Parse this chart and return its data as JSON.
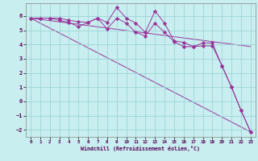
{
  "xlabel": "Windchill (Refroidissement éolien,°C)",
  "bg_color": "#c8eef0",
  "grid_color": "#9fd4d8",
  "line_color": "#993399",
  "xlim": [
    -0.5,
    23.5
  ],
  "ylim": [
    -2.5,
    6.9
  ],
  "xticks": [
    0,
    1,
    2,
    3,
    4,
    5,
    6,
    7,
    8,
    9,
    10,
    11,
    12,
    13,
    14,
    15,
    16,
    17,
    18,
    19,
    20,
    21,
    22,
    23
  ],
  "yticks": [
    -2,
    -1,
    0,
    1,
    2,
    3,
    4,
    5,
    6
  ],
  "line1_x": [
    0,
    1,
    2,
    3,
    4,
    5,
    6,
    7,
    8,
    9,
    10,
    11,
    12,
    13,
    14,
    15,
    16,
    17,
    18,
    19,
    20,
    21,
    22,
    23
  ],
  "line1_y": [
    5.85,
    5.85,
    5.85,
    5.7,
    5.55,
    5.25,
    5.55,
    5.85,
    5.1,
    5.85,
    5.5,
    4.85,
    4.6,
    5.5,
    4.85,
    4.2,
    3.85,
    3.85,
    3.9,
    3.9,
    2.5,
    1.0,
    -0.65,
    -2.15
  ],
  "line2_x": [
    0,
    1,
    2,
    3,
    4,
    5,
    6,
    7,
    8,
    9,
    10,
    11,
    12,
    13,
    14,
    15,
    16,
    17,
    18,
    19,
    20,
    21,
    22,
    23
  ],
  "line2_y": [
    5.85,
    5.85,
    5.85,
    5.85,
    5.7,
    5.6,
    5.55,
    5.85,
    5.55,
    6.6,
    5.85,
    5.5,
    4.85,
    6.35,
    5.5,
    4.25,
    4.15,
    3.85,
    4.1,
    4.1,
    2.5,
    1.0,
    -0.65,
    -2.15
  ],
  "line3_x": [
    0,
    23
  ],
  "line3_y": [
    5.85,
    -2.15
  ],
  "line4_x": [
    0,
    23
  ],
  "line4_y": [
    5.85,
    3.85
  ]
}
